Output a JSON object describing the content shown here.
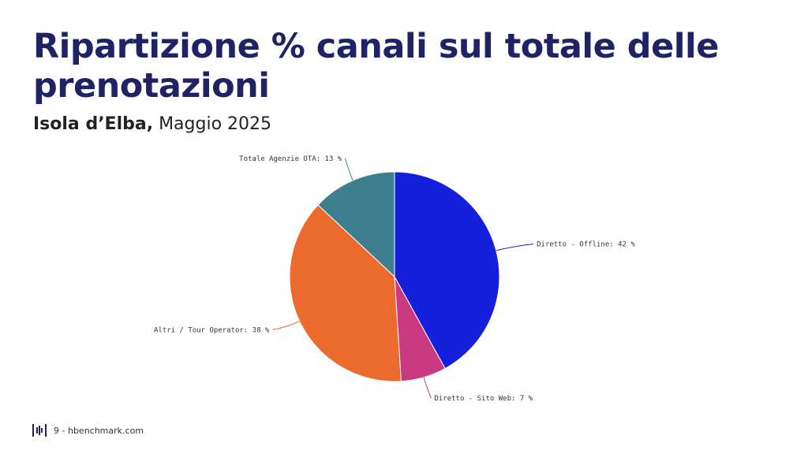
{
  "header": {
    "title": "Ripartizione % canali sul totale delle prenotazioni",
    "subtitle_place": "Isola d’Elba,",
    "subtitle_period": " Maggio 2025"
  },
  "footer": {
    "page_number": "9",
    "separator": " - ",
    "site": "hbenchmark.com",
    "logo_icon": "hbenchmark-logo-icon"
  },
  "chart_data": {
    "type": "pie",
    "title": "",
    "slices": [
      {
        "label": "Diretto - Offline: 42 %",
        "value": 42,
        "color": "#1420db"
      },
      {
        "label": "Diretto - Sito Web: 7 %",
        "value": 7,
        "color": "#c93a82"
      },
      {
        "label": "Altri / Tour Operator: 38 %",
        "value": 38,
        "color": "#ec6a2d"
      },
      {
        "label": "Totale Agenzie OTA: 13 %",
        "value": 13,
        "color": "#3d7f8e"
      }
    ]
  }
}
